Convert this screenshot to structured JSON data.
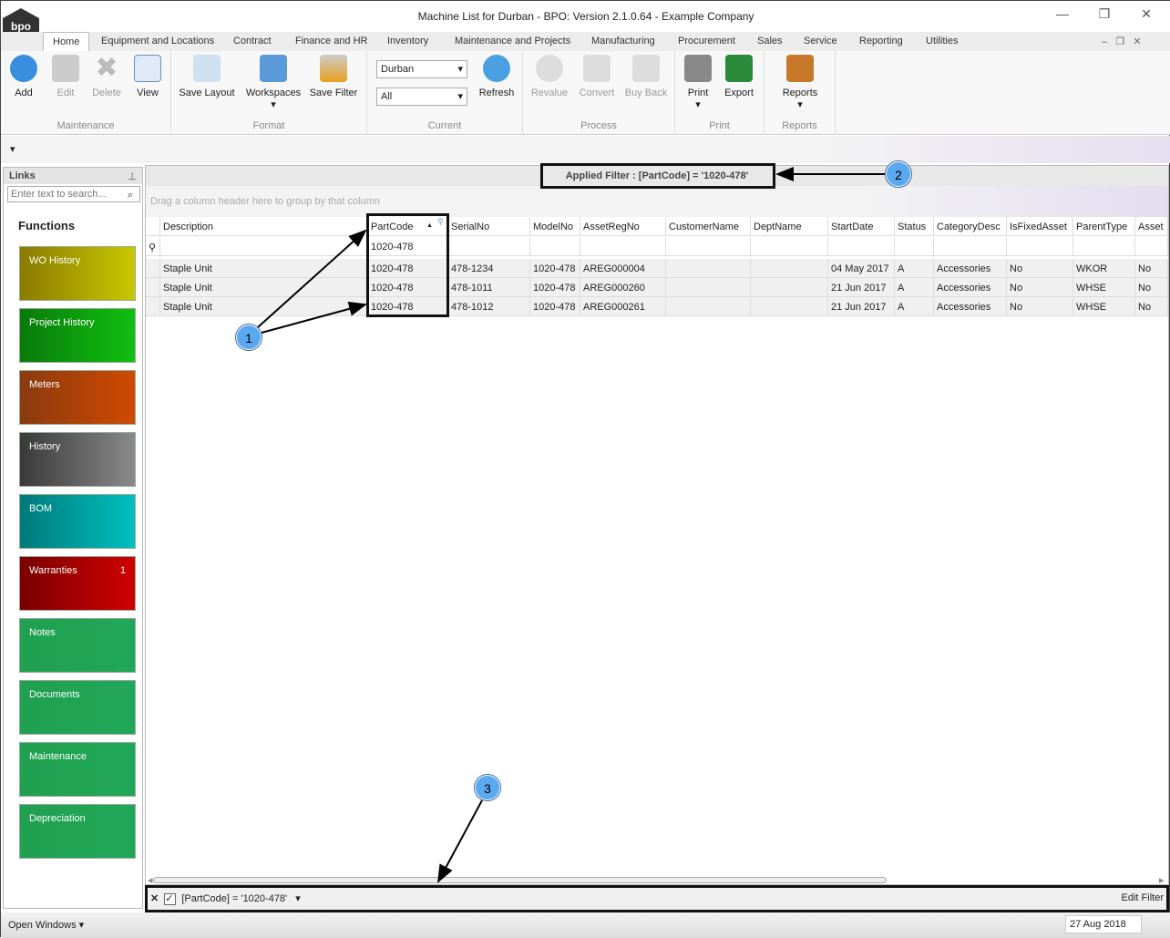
{
  "window": {
    "title": "Machine List for Durban - BPO: Version 2.1.0.64 - Example Company",
    "logo": "bpo"
  },
  "tabs": [
    "Home",
    "Equipment and Locations",
    "Contract",
    "Finance and HR",
    "Inventory",
    "Maintenance and Projects",
    "Manufacturing",
    "Procurement",
    "Sales",
    "Service",
    "Reporting",
    "Utilities"
  ],
  "ribbon": {
    "maintenance": {
      "label": "Maintenance",
      "add": "Add",
      "edit": "Edit",
      "delete": "Delete",
      "view": "View"
    },
    "format": {
      "label": "Format",
      "save_layout": "Save Layout",
      "workspaces": "Workspaces",
      "save_filter": "Save Filter"
    },
    "current": {
      "label": "Current",
      "site": "Durban",
      "status": "All",
      "refresh": "Refresh"
    },
    "process": {
      "label": "Process",
      "revalue": "Revalue",
      "convert": "Convert",
      "buy_back": "Buy Back"
    },
    "print": {
      "label": "Print",
      "print": "Print",
      "export": "Export"
    },
    "reports": {
      "label": "Reports",
      "reports": "Reports"
    }
  },
  "links": {
    "title": "Links",
    "search_placeholder": "Enter text to search...",
    "functions": "Functions",
    "tiles": [
      {
        "label": "WO History",
        "c1": "#8a7a00",
        "c2": "#c8c800"
      },
      {
        "label": "Project History",
        "c1": "#0a7a0a",
        "c2": "#10c010"
      },
      {
        "label": "Meters",
        "c1": "#8a3a10",
        "c2": "#d04a00"
      },
      {
        "label": "History",
        "c1": "#3a3a3a",
        "c2": "#8a8a8a"
      },
      {
        "label": "BOM",
        "c1": "#007a7a",
        "c2": "#00c0c0"
      },
      {
        "label": "Warranties",
        "c1": "#7a0000",
        "c2": "#d00000",
        "badge": "1"
      },
      {
        "label": "Notes",
        "c1": "#20a050",
        "c2": "#20a858"
      },
      {
        "label": "Documents",
        "c1": "#20a050",
        "c2": "#20a858"
      },
      {
        "label": "Maintenance",
        "c1": "#20a050",
        "c2": "#20a858"
      },
      {
        "label": "Depreciation",
        "c1": "#20a050",
        "c2": "#20a858"
      }
    ]
  },
  "grid": {
    "applied_filter": "Applied Filter : [PartCode] = '1020-478'",
    "group_hint": "Drag a column header here to group by that column",
    "columns": [
      "Description",
      "PartCode",
      "SerialNo",
      "ModelNo",
      "AssetRegNo",
      "CustomerName",
      "DeptName",
      "StartDate",
      "Status",
      "CategoryDesc",
      "IsFixedAsset",
      "ParentType",
      "Asset"
    ],
    "filter_row": [
      "",
      "1020-478",
      "",
      "",
      "",
      "",
      "",
      "",
      "",
      "",
      "",
      "",
      ""
    ],
    "rows": [
      [
        "Staple Unit",
        "1020-478",
        "478-1234",
        "1020-478",
        "AREG000004",
        "",
        "",
        "04 May 2017",
        "A",
        "Accessories",
        "No",
        "WKOR",
        "No"
      ],
      [
        "Staple Unit",
        "1020-478",
        "478-1011",
        "1020-478",
        "AREG000260",
        "",
        "",
        "21 Jun 2017",
        "A",
        "Accessories",
        "No",
        "WHSE",
        "No"
      ],
      [
        "Staple Unit",
        "1020-478",
        "478-1012",
        "1020-478",
        "AREG000261",
        "",
        "",
        "21 Jun 2017",
        "A",
        "Accessories",
        "No",
        "WHSE",
        "No"
      ]
    ]
  },
  "filter_bar": {
    "expression": "[PartCode] = '1020-478'",
    "edit": "Edit Filter"
  },
  "status": {
    "open_windows": "Open Windows",
    "date": "27 Aug 2018"
  },
  "callouts": [
    "1",
    "2",
    "3"
  ]
}
